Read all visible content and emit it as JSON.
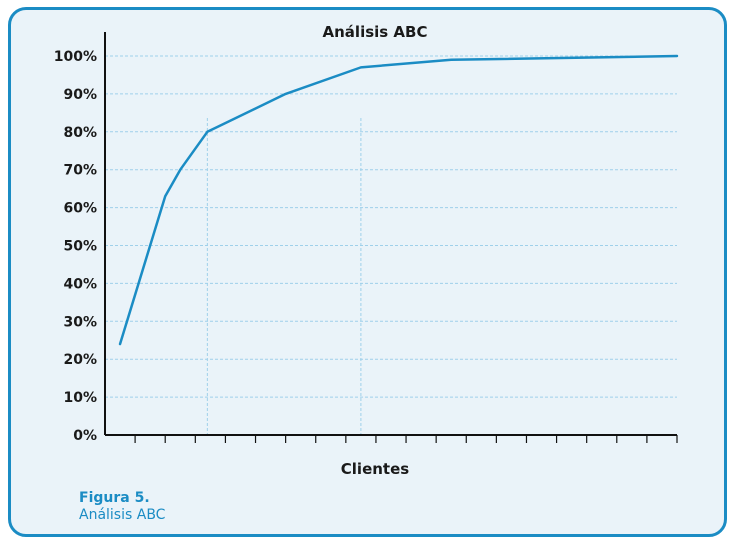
{
  "chart_data": {
    "type": "line",
    "title": "Análisis ABC",
    "xlabel": "Clientes",
    "ylabel": "",
    "ylim": [
      0,
      100
    ],
    "yticks": [
      0,
      10,
      20,
      30,
      40,
      50,
      60,
      70,
      80,
      90,
      100
    ],
    "ytick_labels": [
      "0%",
      "10%",
      "20%",
      "30%",
      "40%",
      "50%",
      "60%",
      "70%",
      "80%",
      "90%",
      "100%"
    ],
    "xlim": [
      0,
      19
    ],
    "xticks": [
      0,
      1,
      2,
      3,
      4,
      5,
      6,
      7,
      8,
      9,
      10,
      11,
      12,
      13,
      14,
      15,
      16,
      17,
      18,
      19
    ],
    "x_gridlines": [
      3.4,
      8.5
    ],
    "grid": true,
    "series": [
      {
        "x": [
          0.5,
          2,
          2.5,
          3.4,
          6,
          8.5,
          11.5,
          19
        ],
        "values": [
          24,
          63,
          70,
          80,
          90,
          97,
          99,
          100
        ]
      }
    ],
    "line_color": "#1b8cc4",
    "grid_color": "#9fd0ea"
  },
  "caption": {
    "label": "Figura 5.",
    "text": "Análisis ABC"
  },
  "colors": {
    "border": "#1b8cc4",
    "background": "#eaf3f9"
  }
}
